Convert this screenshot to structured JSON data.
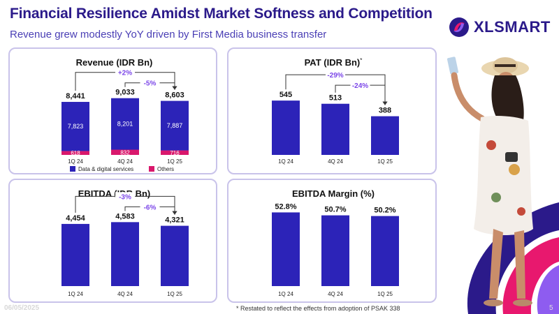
{
  "header": {
    "title": "Financial Resilience Amidst Market Softness and Competition",
    "subtitle": "Revenue grew modestly YoY driven by First Media business transfer"
  },
  "logo": {
    "text": "XLSMART",
    "icon": "xlsmart-logo-icon"
  },
  "footer": {
    "footnote": "* Restated to reflect the effects from adoption of PSAK 338",
    "date": "06/05/2025",
    "page": "5"
  },
  "colors": {
    "bar": "#2c23b8",
    "others": "#d9186c",
    "accent": "#7b46e8",
    "bracket": "#333333"
  },
  "chart_data": [
    {
      "type": "bar",
      "stacked": true,
      "title": "Revenue (IDR Bn)",
      "categories": [
        "1Q 24",
        "4Q 24",
        "1Q 25"
      ],
      "series": [
        {
          "name": "Data & digital services",
          "values": [
            7823,
            8201,
            7887
          ]
        },
        {
          "name": "Others",
          "values": [
            618,
            832,
            716
          ]
        }
      ],
      "totals": [
        "8,441",
        "9,033",
        "8,603"
      ],
      "segment_labels": {
        "data": [
          "7,823",
          "8,201",
          "7,887"
        ],
        "others": [
          "618",
          "832",
          "716"
        ]
      },
      "comparisons": [
        {
          "label": "+2%",
          "from": "1Q 24",
          "to": "1Q 25"
        },
        {
          "label": "-5%",
          "from": "4Q 24",
          "to": "1Q 25"
        }
      ],
      "legend": "bottom",
      "ylim": [
        0,
        10000
      ]
    },
    {
      "type": "bar",
      "title": "PAT (IDR Bn)",
      "title_mark": "*",
      "categories": [
        "1Q 24",
        "4Q 24",
        "1Q 25"
      ],
      "values": [
        545,
        513,
        388
      ],
      "value_labels": [
        "545",
        "513",
        "388"
      ],
      "comparisons": [
        {
          "label": "-29%",
          "from": "1Q 24",
          "to": "1Q 25"
        },
        {
          "label": "-24%",
          "from": "4Q 24",
          "to": "1Q 25"
        }
      ],
      "ylim": [
        0,
        700
      ]
    },
    {
      "type": "bar",
      "title": "EBITDA (IDR Bn)",
      "categories": [
        "1Q 24",
        "4Q 24",
        "1Q 25"
      ],
      "values": [
        4454,
        4583,
        4321
      ],
      "value_labels": [
        "4,454",
        "4,583",
        "4,321"
      ],
      "comparisons": [
        {
          "label": "-3%",
          "from": "1Q 24",
          "to": "1Q 25"
        },
        {
          "label": "-6%",
          "from": "4Q 24",
          "to": "1Q 25"
        }
      ],
      "ylim": [
        0,
        6000
      ]
    },
    {
      "type": "bar",
      "title": "EBITDA Margin (%)",
      "categories": [
        "1Q 24",
        "4Q 24",
        "1Q 25"
      ],
      "values": [
        52.8,
        50.7,
        50.2
      ],
      "value_labels": [
        "52.8%",
        "50.7%",
        "50.2%"
      ],
      "comparisons": [],
      "ylim": [
        0,
        65
      ]
    }
  ]
}
